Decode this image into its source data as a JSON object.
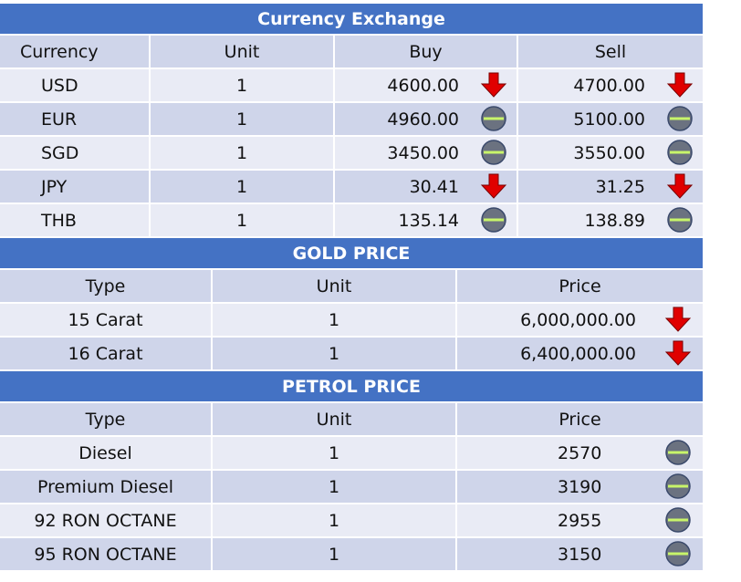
{
  "currency": {
    "title": "Currency Exchange",
    "headers": [
      "Currency",
      "Unit",
      "Buy",
      "Sell"
    ],
    "rows": [
      {
        "currency": "USD",
        "unit": "1",
        "buy": "4600.00",
        "buy_trend": "down-arrow-icon",
        "sell": "4700.00",
        "sell_trend": "down-arrow-icon"
      },
      {
        "currency": "EUR",
        "unit": "1",
        "buy": "4960.00",
        "buy_trend": "unchanged-icon",
        "sell": "5100.00",
        "sell_trend": "unchanged-icon"
      },
      {
        "currency": "SGD",
        "unit": "1",
        "buy": "3450.00",
        "buy_trend": "unchanged-icon",
        "sell": "3550.00",
        "sell_trend": "unchanged-icon"
      },
      {
        "currency": "JPY",
        "unit": "1",
        "buy": "30.41",
        "buy_trend": "down-arrow-icon",
        "sell": "31.25",
        "sell_trend": "down-arrow-icon"
      },
      {
        "currency": "THB",
        "unit": "1",
        "buy": "135.14",
        "buy_trend": "unchanged-icon",
        "sell": "138.89",
        "sell_trend": "unchanged-icon"
      }
    ]
  },
  "gold": {
    "title": "GOLD PRICE",
    "headers": [
      "Type",
      "Unit",
      "Price"
    ],
    "rows": [
      {
        "type": "15 Carat",
        "unit": "1",
        "price": "6,000,000.00",
        "trend": "down-arrow-icon"
      },
      {
        "type": "16 Carat",
        "unit": "1",
        "price": "6,400,000.00",
        "trend": "down-arrow-icon"
      }
    ]
  },
  "petrol": {
    "title": "PETROL PRICE",
    "headers": [
      "Type",
      "Unit",
      "Price"
    ],
    "rows": [
      {
        "type": "Diesel",
        "unit": "1",
        "price": "2570",
        "trend": "unchanged-icon"
      },
      {
        "type": "Premium Diesel",
        "unit": "1",
        "price": "3190",
        "trend": "unchanged-icon"
      },
      {
        "type": "92 RON OCTANE",
        "unit": "1",
        "price": "2955",
        "trend": "unchanged-icon"
      },
      {
        "type": "95 RON OCTANE",
        "unit": "1",
        "price": "3150",
        "trend": "unchanged-icon"
      }
    ]
  },
  "colors": {
    "header_bg": "#4472c4",
    "row_dark": "#cfd5ea",
    "row_light": "#e9ebf5",
    "arrow": "#e00000",
    "neutral": "#6b7280",
    "neutral_line": "#c8f56a"
  }
}
